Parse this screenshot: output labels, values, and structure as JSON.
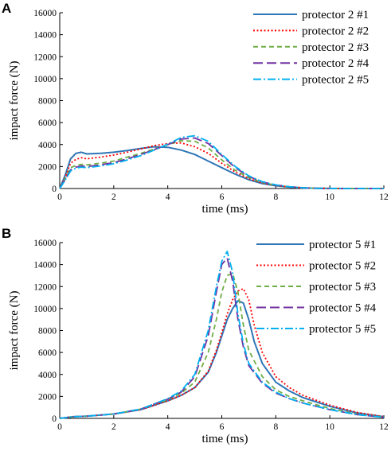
{
  "chart_data": [
    {
      "panel": "A",
      "type": "line",
      "xlabel": "time (ms)",
      "ylabel": "impact force (N)",
      "xlim": [
        0,
        12
      ],
      "ylim": [
        0,
        16000
      ],
      "xticks": [
        0,
        2,
        4,
        6,
        8,
        10,
        12
      ],
      "yticks": [
        0,
        2000,
        4000,
        6000,
        8000,
        10000,
        12000,
        14000,
        16000
      ],
      "grid": false,
      "legend_position": "top-right",
      "series": [
        {
          "name": "protector 2 #1",
          "color": "#2e75b6",
          "dash": "solid",
          "points": [
            [
              0,
              0
            ],
            [
              0.2,
              1200
            ],
            [
              0.4,
              2700
            ],
            [
              0.6,
              3200
            ],
            [
              0.8,
              3300
            ],
            [
              1,
              3150
            ],
            [
              1.5,
              3200
            ],
            [
              2,
              3300
            ],
            [
              2.5,
              3450
            ],
            [
              3,
              3650
            ],
            [
              3.5,
              3800
            ],
            [
              4,
              3750
            ],
            [
              4.5,
              3500
            ],
            [
              5,
              3100
            ],
            [
              5.5,
              2500
            ],
            [
              6,
              1900
            ],
            [
              6.5,
              1300
            ],
            [
              7,
              800
            ],
            [
              7.5,
              450
            ],
            [
              8,
              250
            ],
            [
              8.5,
              120
            ],
            [
              9,
              60
            ],
            [
              9.5,
              25
            ],
            [
              10,
              5
            ],
            [
              10.5,
              0
            ],
            [
              12,
              0
            ]
          ]
        },
        {
          "name": "protector 2 #2",
          "color": "#ff0000",
          "dash": "dotted",
          "points": [
            [
              0,
              0
            ],
            [
              0.2,
              1000
            ],
            [
              0.4,
              2300
            ],
            [
              0.6,
              2650
            ],
            [
              0.8,
              2800
            ],
            [
              1,
              2700
            ],
            [
              1.5,
              2850
            ],
            [
              2,
              3050
            ],
            [
              2.5,
              3300
            ],
            [
              3,
              3600
            ],
            [
              3.5,
              3900
            ],
            [
              4,
              4100
            ],
            [
              4.5,
              4150
            ],
            [
              5,
              3800
            ],
            [
              5.5,
              3200
            ],
            [
              6,
              2300
            ],
            [
              6.5,
              1500
            ],
            [
              7,
              900
            ],
            [
              7.5,
              500
            ],
            [
              8,
              280
            ],
            [
              8.5,
              140
            ],
            [
              9,
              70
            ],
            [
              9.5,
              25
            ],
            [
              10,
              5
            ],
            [
              10.5,
              0
            ],
            [
              12,
              0
            ]
          ]
        },
        {
          "name": "protector 2 #3",
          "color": "#70ad47",
          "dash": "dashed",
          "points": [
            [
              0,
              0
            ],
            [
              0.2,
              900
            ],
            [
              0.4,
              1900
            ],
            [
              0.6,
              2100
            ],
            [
              0.8,
              2200
            ],
            [
              1,
              2150
            ],
            [
              1.5,
              2300
            ],
            [
              2,
              2500
            ],
            [
              2.5,
              2850
            ],
            [
              3,
              3200
            ],
            [
              3.5,
              3600
            ],
            [
              4,
              4000
            ],
            [
              4.5,
              4350
            ],
            [
              5,
              4300
            ],
            [
              5.5,
              3700
            ],
            [
              6,
              2600
            ],
            [
              6.5,
              1650
            ],
            [
              7,
              1000
            ],
            [
              7.5,
              550
            ],
            [
              8,
              300
            ],
            [
              8.5,
              150
            ],
            [
              9,
              70
            ],
            [
              9.5,
              25
            ],
            [
              10,
              5
            ],
            [
              10.5,
              0
            ],
            [
              12,
              0
            ]
          ]
        },
        {
          "name": "protector 2 #4",
          "color": "#7030a0",
          "dash": "longdash",
          "points": [
            [
              0,
              0
            ],
            [
              0.2,
              800
            ],
            [
              0.4,
              1700
            ],
            [
              0.6,
              1950
            ],
            [
              0.8,
              2050
            ],
            [
              1,
              2000
            ],
            [
              1.5,
              2150
            ],
            [
              2,
              2350
            ],
            [
              2.5,
              2700
            ],
            [
              3,
              3100
            ],
            [
              3.5,
              3550
            ],
            [
              4,
              4000
            ],
            [
              4.5,
              4500
            ],
            [
              5,
              4600
            ],
            [
              5.5,
              4100
            ],
            [
              6,
              3000
            ],
            [
              6.5,
              1900
            ],
            [
              7,
              1100
            ],
            [
              7.5,
              600
            ],
            [
              8,
              320
            ],
            [
              8.5,
              160
            ],
            [
              9,
              75
            ],
            [
              9.5,
              25
            ],
            [
              10,
              5
            ],
            [
              10.5,
              0
            ],
            [
              12,
              0
            ]
          ]
        },
        {
          "name": "protector 2 #5",
          "color": "#00b0f0",
          "dash": "dashdot",
          "points": [
            [
              0,
              0
            ],
            [
              0.2,
              750
            ],
            [
              0.4,
              1600
            ],
            [
              0.6,
              1850
            ],
            [
              0.8,
              1950
            ],
            [
              1,
              1900
            ],
            [
              1.5,
              2050
            ],
            [
              2,
              2250
            ],
            [
              2.5,
              2600
            ],
            [
              3,
              3000
            ],
            [
              3.5,
              3500
            ],
            [
              4,
              4050
            ],
            [
              4.5,
              4650
            ],
            [
              5,
              4800
            ],
            [
              5.5,
              4300
            ],
            [
              6,
              3100
            ],
            [
              6.5,
              2000
            ],
            [
              7,
              1150
            ],
            [
              7.5,
              620
            ],
            [
              8,
              330
            ],
            [
              8.5,
              160
            ],
            [
              9,
              75
            ],
            [
              9.5,
              25
            ],
            [
              10,
              5
            ],
            [
              10.5,
              0
            ],
            [
              12,
              0
            ]
          ]
        }
      ]
    },
    {
      "panel": "B",
      "type": "line",
      "xlabel": "time (ms)",
      "ylabel": "impact force (N)",
      "xlim": [
        0,
        12
      ],
      "ylim": [
        0,
        16000
      ],
      "xticks": [
        0,
        2,
        4,
        6,
        8,
        10,
        12
      ],
      "yticks": [
        0,
        2000,
        4000,
        6000,
        8000,
        10000,
        12000,
        14000,
        16000
      ],
      "grid": false,
      "legend_position": "top-right",
      "series": [
        {
          "name": "protector 5 #1",
          "color": "#2e75b6",
          "dash": "solid",
          "points": [
            [
              0,
              0
            ],
            [
              0.5,
              150
            ],
            [
              1,
              200
            ],
            [
              2,
              400
            ],
            [
              3,
              800
            ],
            [
              4,
              1600
            ],
            [
              4.5,
              2100
            ],
            [
              5,
              2800
            ],
            [
              5.5,
              4200
            ],
            [
              5.8,
              6000
            ],
            [
              6,
              7500
            ],
            [
              6.2,
              9000
            ],
            [
              6.4,
              10000
            ],
            [
              6.6,
              10700
            ],
            [
              6.8,
              10500
            ],
            [
              7,
              9000
            ],
            [
              7.2,
              7000
            ],
            [
              7.5,
              5000
            ],
            [
              8,
              3300
            ],
            [
              8.5,
              2500
            ],
            [
              9,
              1900
            ],
            [
              10,
              1100
            ],
            [
              11,
              500
            ],
            [
              12,
              150
            ]
          ]
        },
        {
          "name": "protector 5 #2",
          "color": "#ff0000",
          "dash": "dotted",
          "points": [
            [
              0,
              0
            ],
            [
              0.5,
              150
            ],
            [
              1,
              200
            ],
            [
              2,
              400
            ],
            [
              3,
              800
            ],
            [
              4,
              1600
            ],
            [
              4.5,
              2100
            ],
            [
              5,
              2800
            ],
            [
              5.5,
              4300
            ],
            [
              5.8,
              6200
            ],
            [
              6,
              7800
            ],
            [
              6.2,
              9500
            ],
            [
              6.4,
              10800
            ],
            [
              6.6,
              11600
            ],
            [
              6.8,
              11800
            ],
            [
              7,
              10800
            ],
            [
              7.2,
              8500
            ],
            [
              7.5,
              6000
            ],
            [
              8,
              3800
            ],
            [
              8.5,
              2800
            ],
            [
              9,
              2100
            ],
            [
              10,
              1200
            ],
            [
              11,
              550
            ],
            [
              12,
              150
            ]
          ]
        },
        {
          "name": "protector 5 #3",
          "color": "#70ad47",
          "dash": "dashed",
          "points": [
            [
              0,
              0
            ],
            [
              0.5,
              150
            ],
            [
              1,
              200
            ],
            [
              2,
              400
            ],
            [
              3,
              850
            ],
            [
              4,
              1700
            ],
            [
              4.5,
              2300
            ],
            [
              5,
              3300
            ],
            [
              5.5,
              6000
            ],
            [
              5.8,
              9000
            ],
            [
              6,
              11500
            ],
            [
              6.2,
              13000
            ],
            [
              6.4,
              13200
            ],
            [
              6.6,
              11500
            ],
            [
              6.8,
              8500
            ],
            [
              7,
              6200
            ],
            [
              7.5,
              3800
            ],
            [
              8,
              2600
            ],
            [
              8.5,
              2000
            ],
            [
              9,
              1600
            ],
            [
              10,
              900
            ],
            [
              11,
              400
            ],
            [
              12,
              120
            ]
          ]
        },
        {
          "name": "protector 5 #4",
          "color": "#7030a0",
          "dash": "longdash",
          "points": [
            [
              0,
              0
            ],
            [
              0.5,
              150
            ],
            [
              1,
              200
            ],
            [
              2,
              400
            ],
            [
              3,
              850
            ],
            [
              4,
              1750
            ],
            [
              4.5,
              2400
            ],
            [
              5,
              3800
            ],
            [
              5.5,
              7500
            ],
            [
              5.8,
              11500
            ],
            [
              6,
              14000
            ],
            [
              6.2,
              14600
            ],
            [
              6.4,
              12500
            ],
            [
              6.6,
              9000
            ],
            [
              6.8,
              6500
            ],
            [
              7,
              4800
            ],
            [
              7.5,
              3200
            ],
            [
              8,
              2300
            ],
            [
              8.5,
              1800
            ],
            [
              9,
              1400
            ],
            [
              10,
              800
            ],
            [
              11,
              350
            ],
            [
              12,
              100
            ]
          ]
        },
        {
          "name": "protector 5 #5",
          "color": "#00b0f0",
          "dash": "dashdot",
          "points": [
            [
              0,
              0
            ],
            [
              0.5,
              150
            ],
            [
              1,
              200
            ],
            [
              2,
              400
            ],
            [
              3,
              850
            ],
            [
              4,
              1800
            ],
            [
              4.5,
              2500
            ],
            [
              5,
              4000
            ],
            [
              5.5,
              8000
            ],
            [
              5.8,
              12000
            ],
            [
              6,
              14300
            ],
            [
              6.2,
              15200
            ],
            [
              6.4,
              13300
            ],
            [
              6.6,
              9500
            ],
            [
              6.8,
              6800
            ],
            [
              7,
              5000
            ],
            [
              7.5,
              3300
            ],
            [
              8,
              2400
            ],
            [
              8.5,
              1800
            ],
            [
              9,
              1400
            ],
            [
              10,
              800
            ],
            [
              11,
              350
            ],
            [
              12,
              100
            ]
          ]
        }
      ]
    }
  ]
}
